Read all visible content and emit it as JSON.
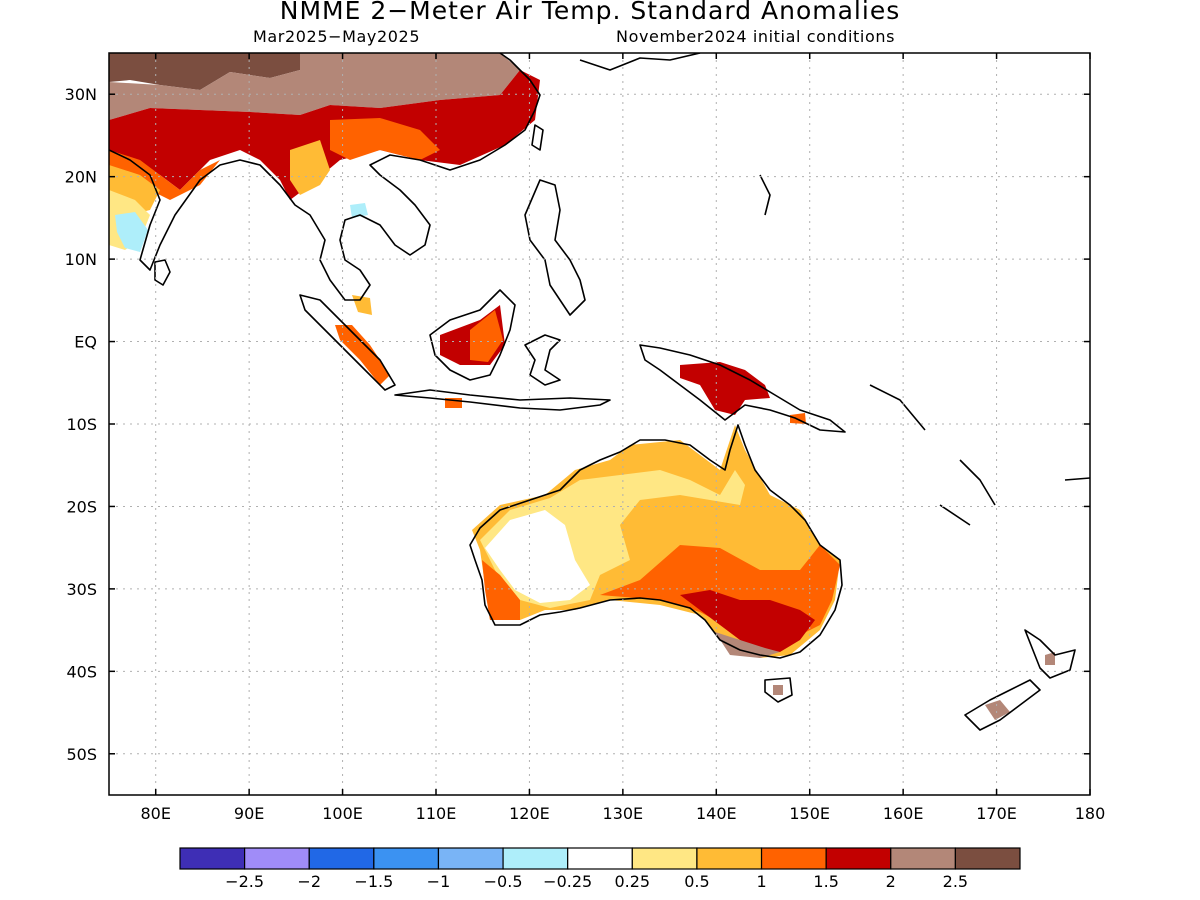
{
  "title": "NMME 2−Meter Air Temp. Standard Anomalies",
  "subtitle_left": "Mar2025−May2025",
  "subtitle_right": "November2024 initial conditions",
  "axes": {
    "lat_labels": [
      "30N",
      "20N",
      "10N",
      "EQ",
      "10S",
      "20S",
      "30S",
      "40S",
      "50S"
    ],
    "lon_labels": [
      "80E",
      "90E",
      "100E",
      "110E",
      "120E",
      "130E",
      "140E",
      "150E",
      "160E",
      "170E",
      "180"
    ],
    "lon_range": [
      75,
      180
    ],
    "lat_range": [
      -55,
      35
    ]
  },
  "colorbar": {
    "labels": [
      "−2.5",
      "−2",
      "−1.5",
      "−1",
      "−0.5",
      "−0.25",
      "0.25",
      "0.5",
      "1",
      "1.5",
      "2",
      "2.5"
    ],
    "colors": [
      "#3e2eb5",
      "#a08cf8",
      "#2168e6",
      "#3b92f2",
      "#79b4f6",
      "#aeeefa",
      "#ffffff",
      "#ffe784",
      "#ffbb35",
      "#ff6200",
      "#c20000",
      "#b38778",
      "#7b4e40"
    ]
  },
  "colors": {
    "land_outline": "#000000",
    "grid": "#b0b0b0"
  }
}
